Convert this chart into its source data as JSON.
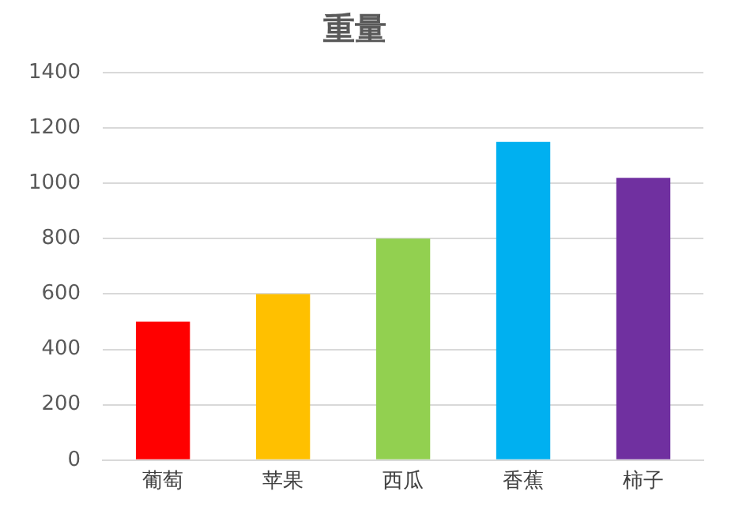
{
  "chart_data": {
    "type": "bar",
    "title": "重量",
    "categories": [
      "葡萄",
      "苹果",
      "西瓜",
      "香蕉",
      "柿子"
    ],
    "values": [
      500,
      600,
      800,
      1150,
      1020
    ],
    "colors": [
      "#ff0000",
      "#ffc000",
      "#92d050",
      "#00b0f0",
      "#7030a0"
    ],
    "ylim": [
      0,
      1400
    ],
    "yticks": [
      0,
      200,
      400,
      600,
      800,
      1000,
      1200,
      1400
    ],
    "grid": "y",
    "legend": false
  }
}
